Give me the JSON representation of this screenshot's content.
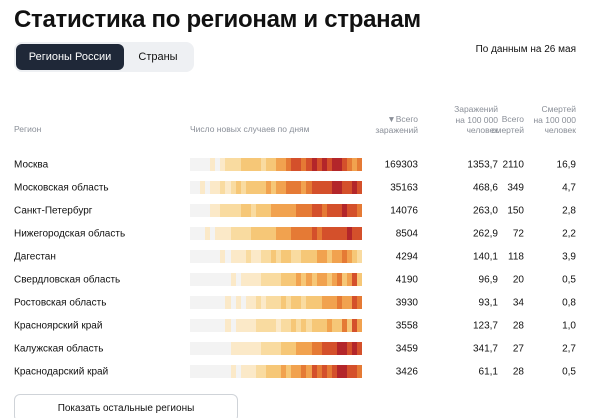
{
  "page": {
    "title": "Статистика по регионам и странам",
    "as_of": "По данным на 26 мая"
  },
  "tabs": [
    {
      "label": "Регионы России",
      "active": true
    },
    {
      "label": "Страны",
      "active": false
    }
  ],
  "headers": {
    "region": "Регион",
    "trend": "Число новых случаев по дням",
    "cases": "▼Всего\nзаражений",
    "cases_per_100k": "Заражений\nна 100 000\nчеловек",
    "deaths": "Всего\nсмертей",
    "deaths_per_100k": "Смертей\nна 100 000\nчеловек"
  },
  "rows": [
    {
      "region": "Москва",
      "cases": "169303",
      "cases_per_100k": "1353,7",
      "deaths": "2110",
      "deaths_per_100k": "16,9"
    },
    {
      "region": "Московская область",
      "cases": "35163",
      "cases_per_100k": "468,6",
      "deaths": "349",
      "deaths_per_100k": "4,7"
    },
    {
      "region": "Санкт-Петербург",
      "cases": "14076",
      "cases_per_100k": "263,0",
      "deaths": "150",
      "deaths_per_100k": "2,8"
    },
    {
      "region": "Нижегородская область",
      "cases": "8504",
      "cases_per_100k": "262,9",
      "deaths": "72",
      "deaths_per_100k": "2,2"
    },
    {
      "region": "Дагестан",
      "cases": "4294",
      "cases_per_100k": "140,1",
      "deaths": "118",
      "deaths_per_100k": "3,9"
    },
    {
      "region": "Свердловская область",
      "cases": "4190",
      "cases_per_100k": "96,9",
      "deaths": "20",
      "deaths_per_100k": "0,5"
    },
    {
      "region": "Ростовская область",
      "cases": "3930",
      "cases_per_100k": "93,1",
      "deaths": "34",
      "deaths_per_100k": "0,8"
    },
    {
      "region": "Красноярский край",
      "cases": "3558",
      "cases_per_100k": "123,7",
      "deaths": "28",
      "deaths_per_100k": "1,0"
    },
    {
      "region": "Калужская область",
      "cases": "3459",
      "cases_per_100k": "341,7",
      "deaths": "27",
      "deaths_per_100k": "2,7"
    },
    {
      "region": "Краснодарский край",
      "cases": "3426",
      "cases_per_100k": "61,1",
      "deaths": "28",
      "deaths_per_100k": "0,5"
    }
  ],
  "heat_levels": [
    [
      0,
      0,
      0,
      0,
      1,
      0,
      1,
      2,
      2,
      2,
      3,
      3,
      3,
      3,
      2,
      3,
      3,
      4,
      4,
      5,
      6,
      6,
      5,
      6,
      7,
      6,
      7,
      6,
      7,
      7,
      6,
      5,
      4,
      5
    ],
    [
      0,
      0,
      1,
      0,
      1,
      1,
      2,
      1,
      2,
      3,
      2,
      3,
      3,
      3,
      3,
      4,
      3,
      4,
      4,
      5,
      5,
      5,
      4,
      5,
      6,
      6,
      6,
      6,
      7,
      7,
      6,
      6,
      7,
      6
    ],
    [
      0,
      0,
      0,
      0,
      1,
      1,
      2,
      2,
      2,
      2,
      3,
      3,
      2,
      3,
      3,
      3,
      4,
      4,
      4,
      4,
      4,
      5,
      5,
      5,
      6,
      6,
      5,
      6,
      6,
      6,
      7,
      6,
      6,
      5
    ],
    [
      0,
      0,
      0,
      1,
      0,
      1,
      1,
      1,
      2,
      2,
      2,
      2,
      3,
      3,
      3,
      3,
      3,
      4,
      4,
      4,
      5,
      5,
      5,
      5,
      6,
      5,
      6,
      6,
      6,
      6,
      6,
      7,
      6,
      6
    ],
    [
      0,
      0,
      0,
      0,
      0,
      0,
      1,
      0,
      1,
      1,
      1,
      2,
      1,
      1,
      2,
      2,
      3,
      2,
      3,
      3,
      2,
      2,
      3,
      3,
      3,
      4,
      4,
      3,
      4,
      4,
      5,
      4,
      3,
      2
    ],
    [
      0,
      0,
      0,
      0,
      0,
      0,
      0,
      0,
      1,
      0,
      1,
      1,
      1,
      1,
      2,
      2,
      2,
      2,
      3,
      3,
      3,
      4,
      3,
      4,
      3,
      4,
      4,
      3,
      4,
      5,
      3,
      4,
      6,
      3
    ],
    [
      0,
      0,
      0,
      0,
      0,
      0,
      0,
      1,
      0,
      1,
      0,
      1,
      1,
      2,
      1,
      2,
      2,
      2,
      3,
      2,
      3,
      3,
      2,
      3,
      3,
      3,
      4,
      4,
      4,
      5,
      4,
      4,
      6,
      5
    ],
    [
      0,
      0,
      0,
      0,
      0,
      0,
      0,
      1,
      0,
      1,
      1,
      1,
      1,
      2,
      2,
      2,
      2,
      1,
      2,
      2,
      3,
      2,
      3,
      2,
      3,
      3,
      3,
      4,
      3,
      3,
      5,
      3,
      6,
      4
    ],
    [
      0,
      0,
      0,
      0,
      0,
      0,
      0,
      0,
      1,
      1,
      1,
      1,
      1,
      1,
      2,
      2,
      2,
      2,
      3,
      3,
      3,
      4,
      4,
      4,
      5,
      5,
      6,
      6,
      6,
      7,
      7,
      6,
      7,
      6
    ],
    [
      0,
      0,
      0,
      0,
      0,
      0,
      0,
      0,
      1,
      0,
      1,
      1,
      1,
      2,
      2,
      3,
      3,
      3,
      4,
      3,
      4,
      4,
      5,
      4,
      6,
      5,
      6,
      5,
      6,
      7,
      7,
      6,
      6,
      5
    ]
  ],
  "heat_colors": [
    "#f3f3f3",
    "#fbe9c8",
    "#f9dba0",
    "#f6c777",
    "#f1a24f",
    "#e57a35",
    "#d4502b",
    "#b3262a"
  ],
  "more_button": {
    "label": "Показать остальные регионы"
  }
}
